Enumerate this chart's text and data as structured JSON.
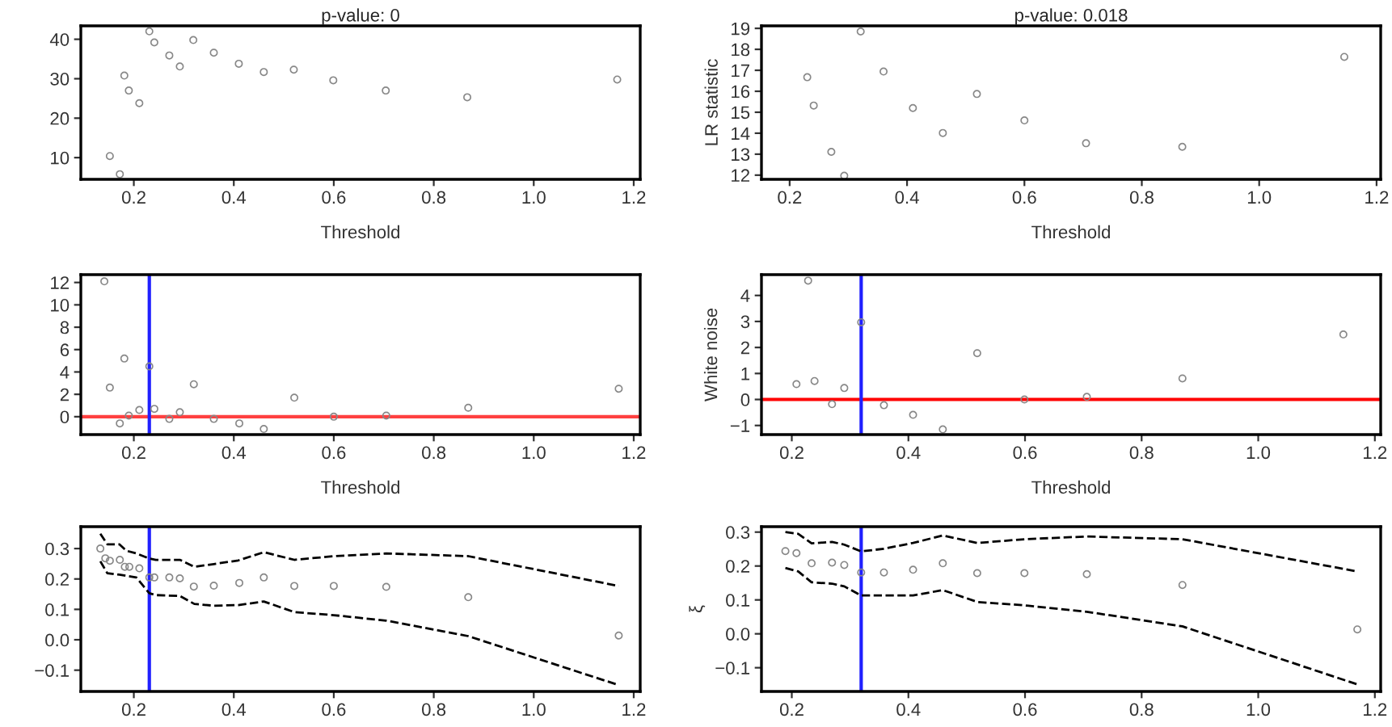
{
  "chart_data": [
    {
      "type": "scatter",
      "title": "p-value: 0",
      "xlabel": "Threshold",
      "xlim": [
        0.094,
        1.213
      ],
      "ylim": [
        4.5,
        43.4
      ],
      "xticks": [
        {
          "value": 0.2,
          "label": "0.2"
        },
        {
          "value": 0.4,
          "label": "0.4"
        },
        {
          "value": 0.6,
          "label": "0.6"
        },
        {
          "value": 0.8,
          "label": "0.8"
        },
        {
          "value": 1.0,
          "label": "1.0"
        },
        {
          "value": 1.2,
          "label": "1.2"
        }
      ],
      "yticks": [
        10,
        20,
        30,
        40
      ],
      "grid": false,
      "legend": false,
      "marker": "circle",
      "series": [
        {
          "color": "#888888",
          "x": [
            0.152,
            0.172,
            0.181,
            0.19,
            0.211,
            0.231,
            0.241,
            0.271,
            0.292,
            0.319,
            0.36,
            0.41,
            0.46,
            0.52,
            0.599,
            0.704,
            0.867,
            1.167
          ],
          "values": [
            10.4,
            5.8,
            30.8,
            27.0,
            23.8,
            42.0,
            39.2,
            35.9,
            33.1,
            39.8,
            36.6,
            33.8,
            31.7,
            32.3,
            29.6,
            27.0,
            25.3,
            29.8
          ]
        }
      ]
    },
    {
      "type": "scatter",
      "title": "p-value: 0.018",
      "xlabel": "Threshold",
      "ylabel": "LR statistic",
      "xlim": [
        0.152,
        1.207
      ],
      "ylim": [
        11.8,
        19.12
      ],
      "xticks": [
        {
          "value": 0.2,
          "label": "0.2"
        },
        {
          "value": 0.4,
          "label": "0.4"
        },
        {
          "value": 0.6,
          "label": "0.6"
        },
        {
          "value": 0.8,
          "label": "0.8"
        },
        {
          "value": 1.0,
          "label": "1.0"
        },
        {
          "value": 1.2,
          "label": "1.2"
        }
      ],
      "yticks": [
        12,
        13,
        14,
        15,
        16,
        17,
        18,
        19
      ],
      "grid": false,
      "legend": false,
      "marker": "circle",
      "series": [
        {
          "color": "#888888",
          "x": [
            0.23,
            0.241,
            0.271,
            0.293,
            0.321,
            0.36,
            0.41,
            0.461,
            0.519,
            0.6,
            0.705,
            0.869,
            1.145
          ],
          "values": [
            16.67,
            15.32,
            13.11,
            11.97,
            18.85,
            16.94,
            15.2,
            14.01,
            15.87,
            14.61,
            13.52,
            13.35,
            17.64
          ]
        }
      ]
    },
    {
      "type": "scatter",
      "xlabel": "Threshold",
      "xlim": [
        0.094,
        1.213
      ],
      "ylim": [
        -1.6,
        12.7
      ],
      "xticks": [
        {
          "value": 0.2,
          "label": "0.2"
        },
        {
          "value": 0.4,
          "label": "0.4"
        },
        {
          "value": 0.6,
          "label": "0.6"
        },
        {
          "value": 0.8,
          "label": "0.8"
        },
        {
          "value": 1.0,
          "label": "1.0"
        },
        {
          "value": 1.2,
          "label": "1.2"
        }
      ],
      "yticks": [
        0,
        2,
        4,
        6,
        8,
        10,
        12
      ],
      "grid": false,
      "legend": false,
      "marker": "circle",
      "ref_lines": [
        {
          "axis": "y",
          "value": 0,
          "color": "#ff4040"
        },
        {
          "axis": "x",
          "value": 0.231,
          "color": "#2020ff"
        }
      ],
      "series": [
        {
          "color": "#888888",
          "x": [
            0.141,
            0.152,
            0.172,
            0.181,
            0.19,
            0.211,
            0.231,
            0.241,
            0.271,
            0.292,
            0.32,
            0.36,
            0.411,
            0.46,
            0.521,
            0.6,
            0.705,
            0.869,
            1.17
          ],
          "values": [
            12.1,
            2.6,
            -0.6,
            5.2,
            0.1,
            0.6,
            4.5,
            0.7,
            -0.2,
            0.4,
            2.9,
            -0.2,
            -0.6,
            -1.1,
            1.7,
            0,
            0.1,
            0.8,
            2.5
          ]
        }
      ]
    },
    {
      "type": "scatter",
      "xlabel": "Threshold",
      "ylabel": "White noise",
      "xlim": [
        0.148,
        1.21
      ],
      "ylim": [
        -1.35,
        4.8
      ],
      "xticks": [
        {
          "value": 0.2,
          "label": "0.2"
        },
        {
          "value": 0.4,
          "label": "0.4"
        },
        {
          "value": 0.6,
          "label": "0.6"
        },
        {
          "value": 0.8,
          "label": "0.8"
        },
        {
          "value": 1.0,
          "label": "1.0"
        },
        {
          "value": 1.2,
          "label": "1.2"
        }
      ],
      "yticks": [
        {
          "value": -1,
          "label": "−1"
        },
        0,
        1,
        2,
        3,
        4
      ],
      "grid": false,
      "legend": false,
      "marker": "circle",
      "ref_lines": [
        {
          "axis": "y",
          "value": 0,
          "color": "#ff0000"
        },
        {
          "axis": "x",
          "value": 0.319,
          "color": "#2020ff"
        }
      ],
      "series": [
        {
          "color": "#888888",
          "x": [
            0.208,
            0.228,
            0.239,
            0.269,
            0.29,
            0.319,
            0.358,
            0.408,
            0.459,
            0.518,
            0.599,
            0.706,
            0.87,
            1.146
          ],
          "values": [
            0.59,
            4.57,
            0.71,
            -0.18,
            0.44,
            2.97,
            -0.22,
            -0.59,
            -1.15,
            1.78,
            0,
            0.1,
            0.81,
            2.5
          ]
        }
      ]
    },
    {
      "type": "scatter",
      "xlim": [
        0.094,
        1.213
      ],
      "ylim": [
        -0.17,
        0.372
      ],
      "xticks": [
        {
          "value": 0.2,
          "label": "0.2"
        },
        {
          "value": 0.4,
          "label": "0.4"
        },
        {
          "value": 0.6,
          "label": "0.6"
        },
        {
          "value": 0.8,
          "label": "0.8"
        },
        {
          "value": 1.0,
          "label": "1.0"
        },
        {
          "value": 1.2,
          "label": "1.2"
        }
      ],
      "yticks": [
        {
          "value": -0.1,
          "label": "−0.1"
        },
        {
          "value": 0,
          "label": "0.0"
        },
        {
          "value": 0.1,
          "label": "0.1"
        },
        {
          "value": 0.2,
          "label": "0.2"
        },
        {
          "value": 0.3,
          "label": "0.3"
        }
      ],
      "grid": false,
      "legend": false,
      "marker": "circle",
      "ref_lines": [
        {
          "axis": "x",
          "value": 0.231,
          "color": "#2020ff"
        }
      ],
      "series": [
        {
          "color": "#888888",
          "x": [
            0.133,
            0.143,
            0.152,
            0.172,
            0.182,
            0.191,
            0.211,
            0.231,
            0.241,
            0.271,
            0.292,
            0.32,
            0.36,
            0.411,
            0.46,
            0.521,
            0.6,
            0.705,
            0.869,
            1.17
          ],
          "values": [
            0.3,
            0.268,
            0.26,
            0.263,
            0.24,
            0.24,
            0.235,
            0.205,
            0.205,
            0.205,
            0.202,
            0.175,
            0.178,
            0.187,
            0.205,
            0.177,
            0.177,
            0.174,
            0.14,
            0.014
          ]
        },
        {
          "type": "line",
          "marker": "none",
          "line_style": "dashed",
          "color": "#000000",
          "x": [
            0.133,
            0.147,
            0.171,
            0.185,
            0.205,
            0.231,
            0.244,
            0.292,
            0.321,
            0.36,
            0.409,
            0.46,
            0.521,
            0.6,
            0.705,
            0.869,
            1.17
          ],
          "values": [
            0.349,
            0.314,
            0.314,
            0.293,
            0.284,
            0.267,
            0.263,
            0.263,
            0.24,
            0.249,
            0.261,
            0.288,
            0.263,
            0.275,
            0.284,
            0.275,
            0.177
          ]
        },
        {
          "type": "line",
          "marker": "none",
          "line_style": "dashed",
          "color": "#000000",
          "x": [
            0.133,
            0.147,
            0.171,
            0.205,
            0.231,
            0.244,
            0.292,
            0.321,
            0.36,
            0.409,
            0.46,
            0.521,
            0.6,
            0.705,
            0.869,
            1.17
          ],
          "values": [
            0.258,
            0.219,
            0.214,
            0.205,
            0.153,
            0.147,
            0.144,
            0.118,
            0.112,
            0.114,
            0.126,
            0.091,
            0.081,
            0.063,
            0.012,
            -0.149
          ]
        }
      ]
    },
    {
      "type": "scatter",
      "ylabel": "ξ",
      "xlim": [
        0.148,
        1.21
      ],
      "ylim": [
        -0.17,
        0.316
      ],
      "xticks": [
        {
          "value": 0.2,
          "label": "0.2"
        },
        {
          "value": 0.4,
          "label": "0.4"
        },
        {
          "value": 0.6,
          "label": "0.6"
        },
        {
          "value": 0.8,
          "label": "0.8"
        },
        {
          "value": 1.0,
          "label": "1.0"
        },
        {
          "value": 1.2,
          "label": "1.2"
        }
      ],
      "yticks": [
        {
          "value": -0.1,
          "label": "−0.1"
        },
        {
          "value": 0,
          "label": "0.0"
        },
        {
          "value": 0.1,
          "label": "0.1"
        },
        {
          "value": 0.2,
          "label": "0.2"
        },
        {
          "value": 0.3,
          "label": "0.3"
        }
      ],
      "grid": false,
      "legend": false,
      "marker": "circle",
      "ref_lines": [
        {
          "axis": "x",
          "value": 0.319,
          "color": "#2020ff"
        }
      ],
      "series": [
        {
          "color": "#888888",
          "x": [
            0.189,
            0.208,
            0.234,
            0.269,
            0.29,
            0.319,
            0.358,
            0.408,
            0.459,
            0.518,
            0.599,
            0.706,
            0.87,
            1.17
          ],
          "values": [
            0.244,
            0.238,
            0.208,
            0.21,
            0.203,
            0.181,
            0.181,
            0.189,
            0.208,
            0.179,
            0.179,
            0.176,
            0.144,
            0.013
          ]
        },
        {
          "type": "line",
          "marker": "none",
          "line_style": "dashed",
          "color": "#000000",
          "x": [
            0.189,
            0.211,
            0.234,
            0.269,
            0.29,
            0.319,
            0.358,
            0.408,
            0.459,
            0.518,
            0.599,
            0.706,
            0.87,
            1.17
          ],
          "values": [
            0.3,
            0.295,
            0.267,
            0.271,
            0.263,
            0.243,
            0.251,
            0.268,
            0.29,
            0.268,
            0.279,
            0.287,
            0.279,
            0.184
          ]
        },
        {
          "type": "line",
          "marker": "none",
          "line_style": "dashed",
          "color": "#000000",
          "x": [
            0.189,
            0.211,
            0.234,
            0.269,
            0.29,
            0.319,
            0.358,
            0.408,
            0.459,
            0.518,
            0.599,
            0.706,
            0.87,
            1.17
          ],
          "values": [
            0.194,
            0.184,
            0.152,
            0.148,
            0.14,
            0.113,
            0.113,
            0.113,
            0.129,
            0.094,
            0.084,
            0.065,
            0.022,
            -0.149
          ]
        }
      ]
    }
  ]
}
